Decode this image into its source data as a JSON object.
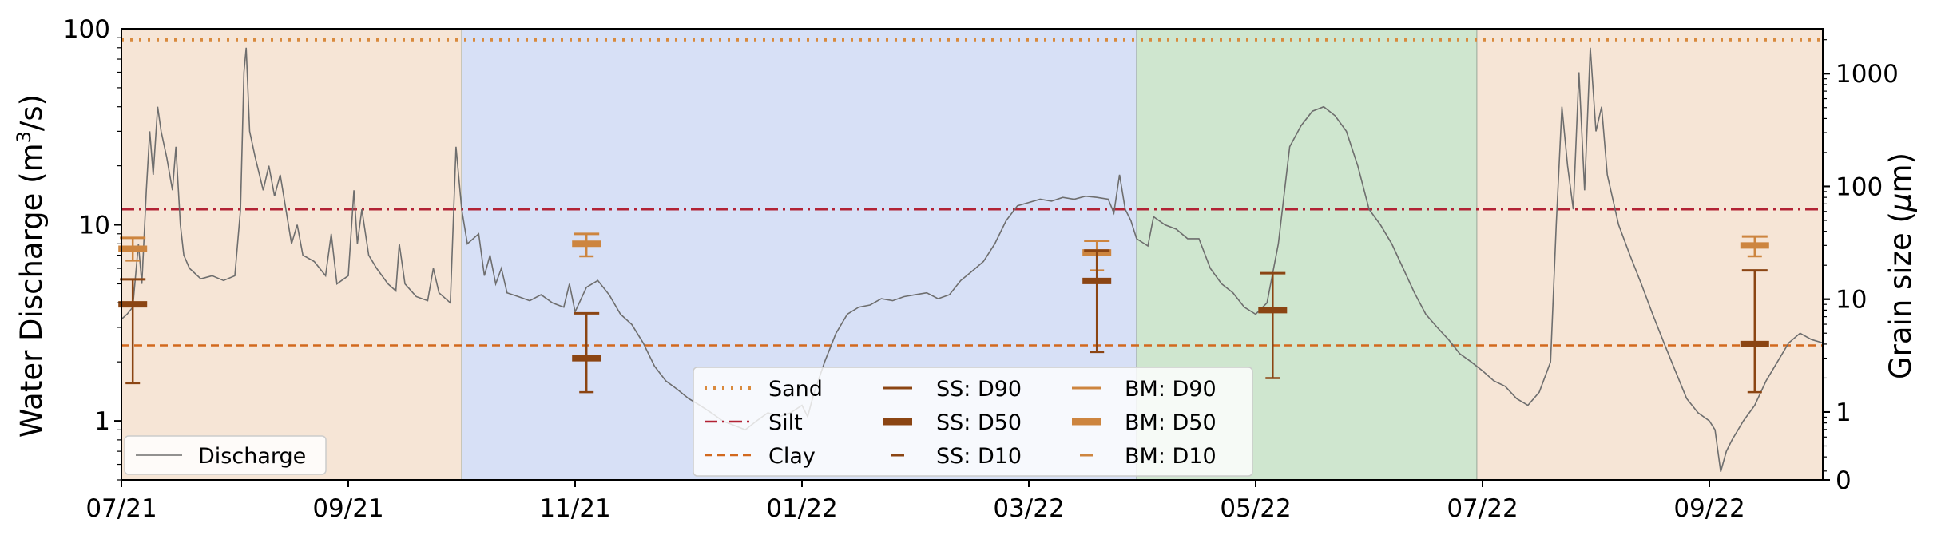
{
  "chart_data": {
    "type": "line",
    "title": "",
    "xlabel": "",
    "ylabel": "Water Discharge (m",
    "ylabel_sup": "3",
    "ylabel_tail": "/s)",
    "y2label": "Grain size (",
    "y2label_mu": "μ",
    "y2label_tail": "m)",
    "x_ticks": [
      "07/21",
      "09/21",
      "11/21",
      "01/22",
      "03/22",
      "05/22",
      "07/22",
      "09/22"
    ],
    "x_tick_months": [
      0,
      2,
      4,
      6,
      8,
      10,
      12,
      14
    ],
    "x_range_months": [
      0,
      15.0
    ],
    "y_scale": "log",
    "y_range": [
      0.5,
      100
    ],
    "y_ticks": [
      {
        "value": 1,
        "label": "1"
      },
      {
        "value": 10,
        "label": "10"
      },
      {
        "value": 100,
        "label": "100"
      }
    ],
    "y2_scale": "log (with 0 at bottom)",
    "y2_range": [
      0.25,
      2500
    ],
    "y2_ticks": [
      {
        "value": 0.25,
        "label": "0"
      },
      {
        "value": 1,
        "label": "1"
      },
      {
        "value": 10,
        "label": "10"
      },
      {
        "value": 100,
        "label": "100"
      },
      {
        "value": 1000,
        "label": "1000"
      }
    ],
    "season_bands": [
      {
        "start_month": 0,
        "end_month": 3.0,
        "color": "#f6e5d6"
      },
      {
        "start_month": 3.0,
        "end_month": 8.95,
        "color": "#d7e0f6"
      },
      {
        "start_month": 8.95,
        "end_month": 11.95,
        "color": "#cfe6cf"
      },
      {
        "start_month": 11.95,
        "end_month": 15.0,
        "color": "#f6e5d6"
      }
    ],
    "reference_lines": [
      {
        "name": "Sand",
        "grain_um": 2000,
        "style": "dotted",
        "color": "#d98a3d"
      },
      {
        "name": "Silt",
        "grain_um": 62.5,
        "style": "dashdot",
        "color": "#b22234"
      },
      {
        "name": "Clay",
        "grain_um": 3.9,
        "style": "dashed",
        "color": "#d2691e"
      }
    ],
    "series": [
      {
        "name": "Discharge",
        "color": "#6e6e6e",
        "points": [
          [
            0.0,
            3.3
          ],
          [
            0.05,
            3.5
          ],
          [
            0.1,
            3.8
          ],
          [
            0.15,
            8
          ],
          [
            0.18,
            5
          ],
          [
            0.22,
            15
          ],
          [
            0.25,
            30
          ],
          [
            0.28,
            18
          ],
          [
            0.32,
            40
          ],
          [
            0.35,
            30
          ],
          [
            0.4,
            22
          ],
          [
            0.45,
            15
          ],
          [
            0.48,
            25
          ],
          [
            0.52,
            10
          ],
          [
            0.55,
            7
          ],
          [
            0.6,
            6
          ],
          [
            0.7,
            5.3
          ],
          [
            0.8,
            5.5
          ],
          [
            0.9,
            5.2
          ],
          [
            1.0,
            5.5
          ],
          [
            1.05,
            12
          ],
          [
            1.08,
            60
          ],
          [
            1.1,
            80
          ],
          [
            1.13,
            30
          ],
          [
            1.18,
            22
          ],
          [
            1.25,
            15
          ],
          [
            1.3,
            20
          ],
          [
            1.35,
            14
          ],
          [
            1.4,
            18
          ],
          [
            1.45,
            12
          ],
          [
            1.5,
            8
          ],
          [
            1.55,
            10
          ],
          [
            1.6,
            7
          ],
          [
            1.7,
            6.5
          ],
          [
            1.8,
            5.5
          ],
          [
            1.85,
            9
          ],
          [
            1.9,
            5
          ],
          [
            2.0,
            5.5
          ],
          [
            2.05,
            15
          ],
          [
            2.08,
            8
          ],
          [
            2.12,
            12
          ],
          [
            2.18,
            7
          ],
          [
            2.25,
            6
          ],
          [
            2.35,
            5
          ],
          [
            2.42,
            4.6
          ],
          [
            2.45,
            8
          ],
          [
            2.5,
            5
          ],
          [
            2.6,
            4.3
          ],
          [
            2.7,
            4.1
          ],
          [
            2.75,
            6
          ],
          [
            2.8,
            4.5
          ],
          [
            2.9,
            4
          ],
          [
            2.95,
            25
          ],
          [
            3.0,
            12
          ],
          [
            3.05,
            8
          ],
          [
            3.15,
            9
          ],
          [
            3.2,
            5.5
          ],
          [
            3.25,
            7
          ],
          [
            3.3,
            5
          ],
          [
            3.35,
            6
          ],
          [
            3.4,
            4.5
          ],
          [
            3.5,
            4.3
          ],
          [
            3.6,
            4.1
          ],
          [
            3.7,
            4.4
          ],
          [
            3.8,
            4
          ],
          [
            3.9,
            3.8
          ],
          [
            3.95,
            5
          ],
          [
            4.0,
            3.6
          ],
          [
            4.1,
            4.8
          ],
          [
            4.2,
            5.2
          ],
          [
            4.3,
            4.4
          ],
          [
            4.4,
            3.5
          ],
          [
            4.5,
            3.1
          ],
          [
            4.6,
            2.5
          ],
          [
            4.7,
            1.9
          ],
          [
            4.8,
            1.6
          ],
          [
            4.9,
            1.45
          ],
          [
            5.0,
            1.3
          ],
          [
            5.1,
            1.2
          ],
          [
            5.2,
            1.1
          ],
          [
            5.3,
            1.0
          ],
          [
            5.4,
            0.95
          ],
          [
            5.5,
            0.9
          ],
          [
            5.6,
            1.0
          ],
          [
            5.7,
            1.1
          ],
          [
            5.8,
            1.05
          ],
          [
            5.9,
            1.1
          ],
          [
            6.0,
            1.2
          ],
          [
            6.05,
            1.05
          ],
          [
            6.1,
            1.35
          ],
          [
            6.2,
            2.0
          ],
          [
            6.3,
            2.8
          ],
          [
            6.4,
            3.5
          ],
          [
            6.5,
            3.8
          ],
          [
            6.6,
            3.9
          ],
          [
            6.7,
            4.2
          ],
          [
            6.8,
            4.1
          ],
          [
            6.9,
            4.3
          ],
          [
            7.0,
            4.4
          ],
          [
            7.1,
            4.5
          ],
          [
            7.2,
            4.2
          ],
          [
            7.3,
            4.4
          ],
          [
            7.4,
            5.2
          ],
          [
            7.5,
            5.8
          ],
          [
            7.6,
            6.5
          ],
          [
            7.7,
            8
          ],
          [
            7.8,
            10.5
          ],
          [
            7.9,
            12.5
          ],
          [
            8.0,
            13
          ],
          [
            8.1,
            13.5
          ],
          [
            8.2,
            13.2
          ],
          [
            8.3,
            13.8
          ],
          [
            8.4,
            13.5
          ],
          [
            8.5,
            14
          ],
          [
            8.6,
            13.8
          ],
          [
            8.7,
            13.5
          ],
          [
            8.75,
            11.5
          ],
          [
            8.8,
            18
          ],
          [
            8.85,
            12
          ],
          [
            8.9,
            10.5
          ],
          [
            8.95,
            8.5
          ],
          [
            9.05,
            7.8
          ],
          [
            9.1,
            11
          ],
          [
            9.2,
            10
          ],
          [
            9.3,
            9.5
          ],
          [
            9.4,
            8.5
          ],
          [
            9.5,
            8.5
          ],
          [
            9.6,
            6
          ],
          [
            9.7,
            5
          ],
          [
            9.8,
            4.5
          ],
          [
            9.9,
            3.8
          ],
          [
            10.0,
            3.5
          ],
          [
            10.1,
            4
          ],
          [
            10.2,
            8
          ],
          [
            10.3,
            25
          ],
          [
            10.4,
            32
          ],
          [
            10.5,
            38
          ],
          [
            10.6,
            40
          ],
          [
            10.7,
            36
          ],
          [
            10.8,
            30
          ],
          [
            10.9,
            20
          ],
          [
            11.0,
            12
          ],
          [
            11.1,
            10
          ],
          [
            11.2,
            8
          ],
          [
            11.3,
            6
          ],
          [
            11.4,
            4.5
          ],
          [
            11.5,
            3.5
          ],
          [
            11.6,
            3
          ],
          [
            11.7,
            2.6
          ],
          [
            11.8,
            2.2
          ],
          [
            11.9,
            2.0
          ],
          [
            12.0,
            1.8
          ],
          [
            12.1,
            1.6
          ],
          [
            12.2,
            1.5
          ],
          [
            12.3,
            1.3
          ],
          [
            12.4,
            1.2
          ],
          [
            12.5,
            1.4
          ],
          [
            12.6,
            2
          ],
          [
            12.65,
            10
          ],
          [
            12.7,
            40
          ],
          [
            12.75,
            20
          ],
          [
            12.8,
            12
          ],
          [
            12.85,
            60
          ],
          [
            12.9,
            15
          ],
          [
            12.95,
            80
          ],
          [
            13.0,
            30
          ],
          [
            13.05,
            40
          ],
          [
            13.1,
            18
          ],
          [
            13.2,
            10
          ],
          [
            13.3,
            7
          ],
          [
            13.4,
            5
          ],
          [
            13.5,
            3.5
          ],
          [
            13.6,
            2.5
          ],
          [
            13.7,
            1.8
          ],
          [
            13.8,
            1.3
          ],
          [
            13.9,
            1.1
          ],
          [
            14.0,
            1.0
          ],
          [
            14.05,
            0.9
          ],
          [
            14.1,
            0.55
          ],
          [
            14.15,
            0.7
          ],
          [
            14.2,
            0.8
          ],
          [
            14.3,
            1.0
          ],
          [
            14.4,
            1.2
          ],
          [
            14.5,
            1.6
          ],
          [
            14.6,
            2.0
          ],
          [
            14.7,
            2.5
          ],
          [
            14.8,
            2.8
          ],
          [
            14.9,
            2.6
          ],
          [
            15.0,
            2.5
          ]
        ]
      }
    ],
    "errorbars": [
      {
        "group": "SS",
        "month": 0.1,
        "d90": 15,
        "d50": 9,
        "d10": 1.8,
        "color": "#8b4513"
      },
      {
        "group": "BM",
        "month": 0.1,
        "d90": 35,
        "d50": 28,
        "d10": 22,
        "color": "#cd853f"
      },
      {
        "group": "BM",
        "month": 4.1,
        "d90": 38,
        "d50": 31,
        "d10": 24,
        "color": "#cd853f"
      },
      {
        "group": "SS",
        "month": 4.1,
        "d90": 7.5,
        "d50": 3.0,
        "d10": 1.5,
        "color": "#8b4513"
      },
      {
        "group": "BM",
        "month": 8.6,
        "d90": 33,
        "d50": 26,
        "d10": 18,
        "color": "#cd853f"
      },
      {
        "group": "SS",
        "month": 8.6,
        "d90": 27,
        "d50": 14.5,
        "d10": 3.4,
        "color": "#8b4513"
      },
      {
        "group": "SS",
        "month": 10.15,
        "d90": 17,
        "d50": 8,
        "d10": 2.0,
        "color": "#8b4513"
      },
      {
        "group": "BM",
        "month": 14.4,
        "d90": 36,
        "d50": 30,
        "d10": 24,
        "color": "#cd853f"
      },
      {
        "group": "SS",
        "month": 14.4,
        "d90": 18,
        "d50": 4,
        "d10": 1.5,
        "color": "#8b4513"
      }
    ],
    "legend_left": {
      "position": "lower-left",
      "entries": [
        {
          "label": "Discharge",
          "color": "#6e6e6e"
        }
      ]
    },
    "legend_main": {
      "position": "lower-center",
      "columns": [
        [
          {
            "label": "Sand",
            "style": "dotted",
            "color": "#d98a3d"
          },
          {
            "label": "Silt",
            "style": "dashdot",
            "color": "#b22234"
          },
          {
            "label": "Clay",
            "style": "dashed",
            "color": "#d2691e"
          }
        ],
        [
          {
            "label": "SS: D90",
            "style": "thin",
            "color": "#8b4513"
          },
          {
            "label": "SS: D50",
            "style": "thick",
            "color": "#8b4513"
          },
          {
            "label": "SS: D10",
            "style": "short",
            "color": "#8b4513"
          }
        ],
        [
          {
            "label": "BM: D90",
            "style": "thin",
            "color": "#cd853f"
          },
          {
            "label": "BM: D50",
            "style": "thick",
            "color": "#cd853f"
          },
          {
            "label": "BM: D10",
            "style": "short",
            "color": "#cd853f"
          }
        ]
      ]
    },
    "grid": false
  }
}
